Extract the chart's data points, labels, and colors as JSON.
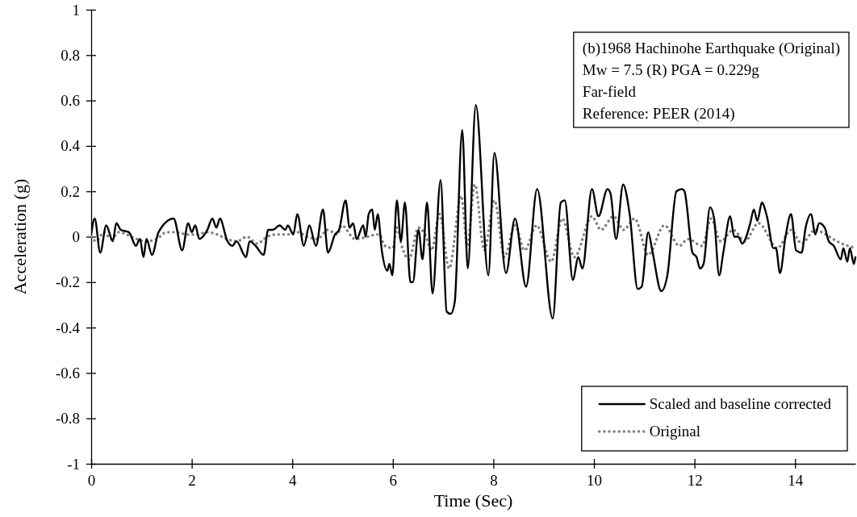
{
  "chart_data": {
    "type": "line",
    "xlabel": "Time (Sec)",
    "ylabel": "Acceleration (g)",
    "xlim": [
      0,
      15.2
    ],
    "xticks": [
      0,
      2,
      4,
      6,
      8,
      10,
      12,
      14
    ],
    "ylim": [
      -1,
      1
    ],
    "yticks": [
      -1,
      -0.8,
      -0.6,
      -0.4,
      -0.2,
      0,
      0.2,
      0.4,
      0.6,
      0.8,
      1
    ],
    "legend": "bottom right",
    "grid": false,
    "annotations": [
      "(b)1968 Hachinohe Earthquake (Original)",
      "Mw = 7.5 (R) PGA = 0.229g",
      "Far-field",
      "Reference: PEER (2014)"
    ],
    "series": [
      {
        "name": "Scaled and baseline corrected",
        "color": "#000000",
        "line_style": "solid",
        "x": [
          0,
          0.07,
          0.18,
          0.3,
          0.43,
          0.5,
          0.59,
          0.75,
          0.89,
          0.97,
          1.04,
          1.1,
          1.21,
          1.34,
          1.64,
          1.81,
          1.93,
          2.0,
          2.07,
          2.15,
          2.31,
          2.41,
          2.49,
          2.56,
          2.71,
          2.81,
          2.89,
          3.08,
          3.15,
          3.27,
          3.43,
          3.52,
          3.61,
          3.75,
          3.86,
          3.91,
          4.02,
          4.1,
          4.23,
          4.34,
          4.47,
          4.61,
          4.71,
          4.85,
          4.93,
          5.06,
          5.14,
          5.21,
          5.28,
          5.41,
          5.46,
          5.52,
          5.59,
          5.64,
          5.7,
          5.78,
          5.89,
          5.93,
          5.99,
          6.08,
          6.16,
          6.24,
          6.35,
          6.4,
          6.51,
          6.59,
          6.68,
          6.79,
          6.95,
          7.07,
          7.15,
          7.23,
          7.38,
          7.49,
          7.65,
          7.9,
          8.02,
          8.25,
          8.43,
          8.65,
          8.87,
          9.18,
          9.34,
          9.42,
          9.58,
          9.69,
          9.77,
          9.96,
          10.09,
          10.27,
          10.33,
          10.44,
          10.58,
          10.71,
          10.87,
          10.95,
          11.08,
          11.16,
          11.34,
          11.46,
          11.64,
          11.75,
          11.8,
          11.96,
          12.04,
          12.11,
          12.18,
          12.31,
          12.39,
          12.49,
          12.58,
          12.71,
          12.79,
          12.87,
          12.95,
          13.11,
          13.18,
          13.25,
          13.34,
          13.44,
          13.57,
          13.62,
          13.7,
          13.81,
          13.92,
          14.02,
          14.13,
          14.21,
          14.32,
          14.4,
          14.48,
          14.59,
          14.67,
          14.77,
          14.91,
          14.96,
          15.04,
          15.09,
          15.17,
          15.2
        ],
        "values": [
          0.01,
          0.08,
          -0.07,
          0.05,
          -0.02,
          0.06,
          0.03,
          0.02,
          -0.04,
          -0.01,
          -0.09,
          -0.01,
          -0.08,
          0.02,
          0.08,
          -0.06,
          0.06,
          0.02,
          0.05,
          -0.01,
          0.03,
          0.08,
          0.04,
          0.08,
          -0.02,
          -0.04,
          -0.02,
          -0.09,
          -0.02,
          -0.04,
          -0.08,
          0.03,
          0.03,
          0.05,
          0.03,
          0.05,
          0.01,
          0.1,
          -0.04,
          0.05,
          -0.04,
          0.12,
          -0.07,
          0.01,
          0.03,
          0.16,
          0.04,
          0.06,
          -0.01,
          0.05,
          0,
          0.1,
          0.12,
          0.03,
          0.1,
          -0.06,
          -0.15,
          -0.12,
          -0.17,
          0.16,
          -0.02,
          0.15,
          -0.2,
          -0.2,
          0.03,
          -0.1,
          0.15,
          -0.25,
          0.25,
          -0.33,
          -0.34,
          -0.29,
          0.47,
          -0.14,
          0.58,
          -0.17,
          0.37,
          -0.16,
          0.08,
          -0.22,
          0.21,
          -0.36,
          0.15,
          0.16,
          -0.19,
          -0.09,
          -0.14,
          0.21,
          0.09,
          0.21,
          0.19,
          -0.01,
          0.23,
          0.1,
          -0.23,
          -0.22,
          0.02,
          -0.06,
          -0.24,
          -0.17,
          0.2,
          0.21,
          0.2,
          -0.07,
          -0.09,
          -0.14,
          -0.12,
          0.13,
          0.08,
          -0.17,
          -0.06,
          0.09,
          0,
          0,
          -0.03,
          0.06,
          0.12,
          0.07,
          0.15,
          0.09,
          -0.05,
          -0.05,
          -0.16,
          0,
          0.1,
          -0.06,
          -0.07,
          0.04,
          0.1,
          0.01,
          0.06,
          0.04,
          -0.02,
          -0.04,
          -0.1,
          -0.05,
          -0.11,
          -0.05,
          -0.12,
          -0.09
        ]
      },
      {
        "name": "Original",
        "color": "#808080",
        "line_style": "dotted",
        "x": [
          0,
          0.1,
          0.25,
          0.4,
          0.55,
          0.7,
          0.9,
          1.1,
          1.3,
          1.5,
          1.7,
          1.9,
          2.1,
          2.3,
          2.5,
          2.7,
          2.9,
          3.1,
          3.3,
          3.5,
          3.7,
          3.9,
          4.1,
          4.3,
          4.5,
          4.7,
          4.9,
          4.98,
          5.25,
          5.73,
          5.84,
          6.0,
          6.08,
          6.19,
          6.32,
          6.51,
          6.64,
          6.77,
          6.93,
          7.12,
          7.36,
          7.48,
          7.63,
          7.82,
          8.02,
          8.22,
          8.43,
          8.62,
          8.86,
          9.15,
          9.37,
          9.61,
          9.96,
          10.14,
          10.39,
          10.59,
          10.81,
          11.08,
          11.4,
          11.7,
          11.87,
          12.15,
          12.33,
          12.52,
          12.77,
          13.0,
          13.27,
          13.65,
          13.92,
          14.13,
          14.4,
          14.61,
          14.83,
          15.2
        ],
        "values": [
          0,
          -0.02,
          0.02,
          -0.01,
          0.02,
          0.01,
          -0.01,
          -0.02,
          -0.01,
          0.02,
          0.02,
          0.01,
          0.01,
          0.02,
          0.01,
          -0.01,
          -0.02,
          0,
          -0.03,
          0,
          0.01,
          0.01,
          0.02,
          0,
          -0.01,
          0.03,
          0.01,
          0.05,
          -0.01,
          0.01,
          -0.04,
          -0.05,
          0.04,
          -0.05,
          -0.1,
          0.04,
          0.01,
          -0.06,
          0.1,
          -0.14,
          0.18,
          -0.04,
          0.23,
          -0.06,
          0.16,
          -0.09,
          0.05,
          -0.06,
          0.05,
          -0.11,
          0.08,
          -0.09,
          0.09,
          0.03,
          0.09,
          0.03,
          0.08,
          -0.08,
          0.05,
          -0.04,
          -0.01,
          -0.04,
          0.08,
          -0.02,
          0.03,
          -0.02,
          0.06,
          -0.05,
          0.03,
          -0.03,
          0.03,
          0.01,
          -0.02,
          -0.05
        ]
      }
    ]
  }
}
